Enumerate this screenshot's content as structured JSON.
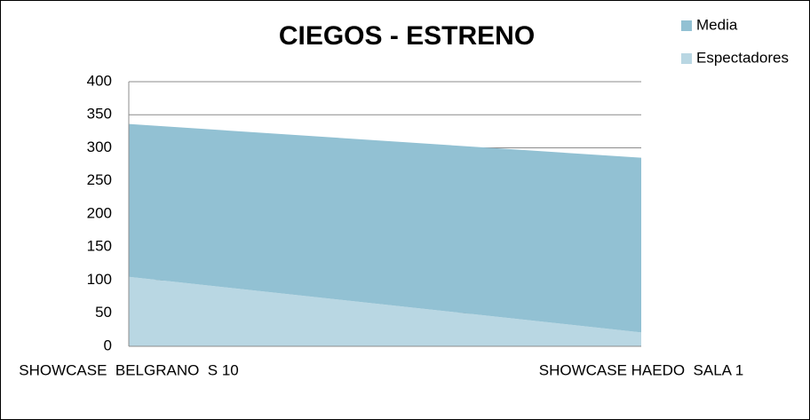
{
  "chart_data": {
    "type": "stacked-area",
    "title": "CIEGOS - ESTRENO",
    "categories": [
      "SHOWCASE  BELGRANO  S 10",
      "SHOWCASE HAEDO  SALA 1"
    ],
    "series": [
      {
        "name": "Espectadores",
        "color": "#b9d7e3",
        "values": [
          105,
          21
        ]
      },
      {
        "name": "Media",
        "color": "#92c1d3",
        "values": [
          231,
          264
        ]
      }
    ],
    "ylim": [
      0,
      400
    ],
    "yticks": [
      0,
      50,
      100,
      150,
      200,
      250,
      300,
      350,
      400
    ],
    "grid": true,
    "legend": "top-right"
  }
}
